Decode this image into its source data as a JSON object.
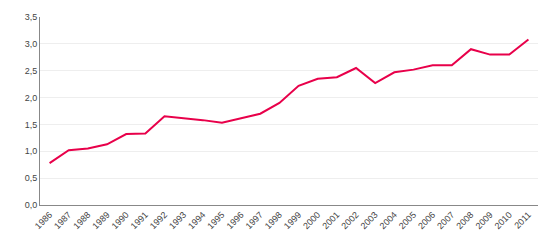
{
  "chart_data": {
    "type": "line",
    "x": [
      1986,
      1987,
      1988,
      1989,
      1990,
      1991,
      1992,
      1993,
      1994,
      1995,
      1996,
      1997,
      1998,
      1999,
      2000,
      2001,
      2002,
      2003,
      2004,
      2005,
      2006,
      2007,
      2008,
      2009,
      2010,
      2011
    ],
    "values": [
      0.78,
      1.02,
      1.05,
      1.13,
      1.32,
      1.33,
      1.65,
      1.62,
      1.58,
      1.53,
      1.62,
      1.7,
      1.9,
      2.22,
      2.35,
      2.38,
      2.55,
      2.27,
      2.47,
      2.52,
      2.6,
      2.6,
      2.9,
      2.8,
      2.8,
      3.08
    ],
    "color": "#e8004a",
    "xlim": [
      1985.5,
      2011.5
    ],
    "xticks": [
      1986,
      1987,
      1988,
      1989,
      1990,
      1991,
      1992,
      1993,
      1994,
      1995,
      1996,
      1997,
      1998,
      1999,
      2000,
      2001,
      2002,
      2003,
      2004,
      2005,
      2006,
      2007,
      2008,
      2009,
      2010,
      2011
    ],
    "ylim": [
      0.0,
      3.5
    ],
    "yticks": [
      {
        "value": 0.0,
        "label": "0,0"
      },
      {
        "value": 0.5,
        "label": "0,5"
      },
      {
        "value": 1.0,
        "label": "1,0"
      },
      {
        "value": 1.5,
        "label": "1,5"
      },
      {
        "value": 2.0,
        "label": "2,0"
      },
      {
        "value": 2.5,
        "label": "2,5"
      },
      {
        "value": 3.0,
        "label": "3,0"
      },
      {
        "value": 3.5,
        "label": "3,5"
      }
    ],
    "grid": true
  }
}
